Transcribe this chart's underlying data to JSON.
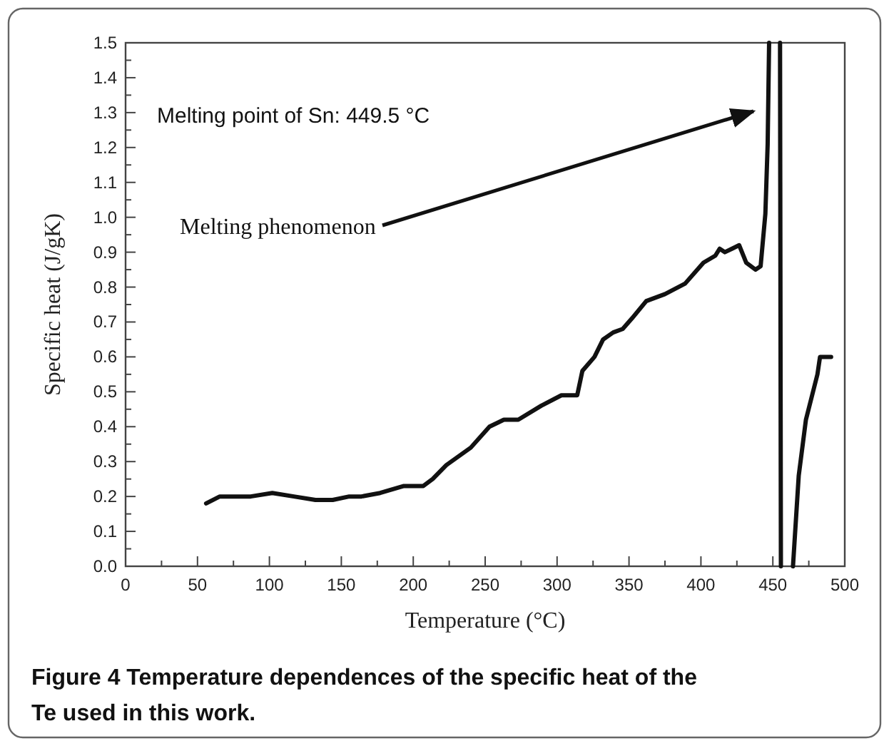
{
  "chart_data": {
    "type": "line",
    "title": "Figure 4 Temperature dependences of the specific heat of the Te used in this work.",
    "xlabel": "Temperature (°C)",
    "ylabel": "Specific heat (J/gK)",
    "series": [
      {
        "color": "#111111",
        "x": [
          56,
          65.5,
          87,
          102,
          117,
          132,
          144,
          155.5,
          164,
          177,
          193.5,
          207,
          213.5,
          223,
          240,
          253,
          263,
          273,
          289,
          303,
          314,
          317.6,
          326,
          332,
          339,
          345.6,
          352,
          362,
          375,
          389,
          401.8,
          410,
          413,
          416.6,
          421.6,
          426.6,
          431.5,
          438,
          441.5,
          444.8,
          446.4,
          447.4,
          451,
          455,
          455.6,
          460,
          464,
          468,
          473,
          481,
          482.8,
          490.5
        ],
        "values": [
          0.18,
          0.2,
          0.2,
          0.21,
          0.2,
          0.19,
          0.19,
          0.2,
          0.2,
          0.21,
          0.23,
          0.23,
          0.25,
          0.29,
          0.34,
          0.4,
          0.42,
          0.42,
          0.46,
          0.49,
          0.49,
          0.56,
          0.6,
          0.65,
          0.67,
          0.68,
          0.71,
          0.76,
          0.78,
          0.81,
          0.87,
          0.89,
          0.91,
          0.9,
          0.91,
          0.92,
          0.87,
          0.85,
          0.86,
          1.01,
          1.21,
          1.5,
          null,
          1.5,
          0.0,
          null,
          0.0,
          0.26,
          0.42,
          0.55,
          0.6,
          0.6
        ]
      }
    ],
    "xlim": [
      0,
      500
    ],
    "xticks": [
      0,
      {
        "value": 25,
        "label": null
      },
      50,
      {
        "value": 75,
        "label": null
      },
      100,
      {
        "value": 125,
        "label": null
      },
      150,
      {
        "value": 175,
        "label": null
      },
      200,
      {
        "value": 225,
        "label": null
      },
      250,
      {
        "value": 275,
        "label": null
      },
      300,
      {
        "value": 325,
        "label": null
      },
      350,
      {
        "value": 375,
        "label": null
      },
      400,
      {
        "value": 425,
        "label": null
      },
      450,
      {
        "value": 475,
        "label": null
      },
      500
    ],
    "ylim": [
      0,
      1.5
    ],
    "yticks": [
      {
        "value": 0,
        "label": "0.0"
      },
      {
        "value": 0.05,
        "label": null
      },
      0.1,
      {
        "value": 0.15,
        "label": null
      },
      0.2,
      {
        "value": 0.25,
        "label": null
      },
      0.3,
      {
        "value": 0.35,
        "label": null
      },
      0.4,
      {
        "value": 0.45,
        "label": null
      },
      0.5,
      {
        "value": 0.55,
        "label": null
      },
      0.6,
      {
        "value": 0.65,
        "label": null
      },
      0.7,
      {
        "value": 0.75,
        "label": null
      },
      0.8,
      {
        "value": 0.85,
        "label": null
      },
      0.9,
      {
        "value": 0.95,
        "label": null
      },
      {
        "value": 1,
        "label": "1.0"
      },
      {
        "value": 1.05,
        "label": null
      },
      1.1,
      {
        "value": 1.15,
        "label": null
      },
      1.2,
      {
        "value": 1.25,
        "label": null
      },
      1.3,
      {
        "value": 1.35,
        "label": null
      },
      1.4,
      {
        "value": 1.45,
        "label": null
      },
      1.5
    ],
    "annotations": [
      "Melting point of Sn: 449.5 °C",
      "Melting phenomenon"
    ],
    "grid": false,
    "marker": "none",
    "line_style": "solid"
  }
}
